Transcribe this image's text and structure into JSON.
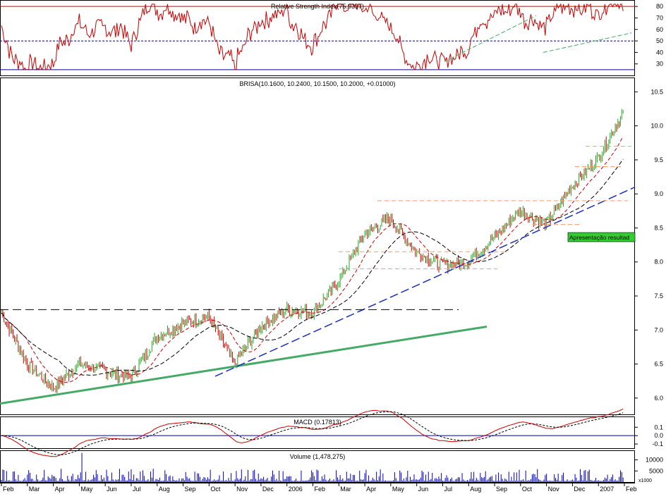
{
  "colors": {
    "price_up": "#22aa22",
    "price_down": "#cc0000",
    "rsi": "#cc0000",
    "rsi_ref": "#000099",
    "ma_short": "#cc0000",
    "ma_long": "#000000",
    "trend_green": "#44aa66",
    "trend_blue": "#1a2fbf",
    "resistance": "#ff9966",
    "macd": "#cc0000",
    "macd_signal": "#000000",
    "volume": "#0000cc",
    "annotation_bg": "#33cc33"
  },
  "chart_data": [
    {
      "type": "line",
      "panel": "rsi",
      "title": "Relative Strength Index(75.9337)",
      "yticks": [
        "80",
        "70",
        "60",
        "50",
        "40",
        "30"
      ],
      "ylim": [
        20,
        85
      ],
      "reference_lines": [
        80,
        50,
        25
      ],
      "last_value": 75.9337
    },
    {
      "type": "candlestick",
      "panel": "price",
      "title": "BRISA(10.1600, 10.2400, 10.1500, 10.2000, +0.01000)",
      "quote": {
        "open": 10.16,
        "high": 10.24,
        "low": 10.15,
        "close": 10.2,
        "change": 0.01
      },
      "yticks": [
        "10.5",
        "10.0",
        "9.5",
        "9.0",
        "8.5",
        "8.0",
        "7.5",
        "7.0",
        "6.5",
        "6.0"
      ],
      "ylim": [
        5.75,
        10.7
      ],
      "x_start": "2005-02",
      "x_end": "2007-02",
      "key_points": [
        {
          "date": "2005-02",
          "value": 7.25
        },
        {
          "date": "2005-03",
          "value": 6.5
        },
        {
          "date": "2005-04",
          "value": 6.15
        },
        {
          "date": "2005-05",
          "value": 6.5
        },
        {
          "date": "2005-06",
          "value": 6.4
        },
        {
          "date": "2005-07",
          "value": 6.3
        },
        {
          "date": "2005-08",
          "value": 6.9
        },
        {
          "date": "2005-09",
          "value": 7.1
        },
        {
          "date": "2005-10",
          "value": 7.2
        },
        {
          "date": "2005-11",
          "value": 6.5
        },
        {
          "date": "2005-12",
          "value": 7.05
        },
        {
          "date": "2006-01",
          "value": 7.3
        },
        {
          "date": "2006-02",
          "value": 7.25
        },
        {
          "date": "2006-03",
          "value": 7.7
        },
        {
          "date": "2006-04",
          "value": 8.4
        },
        {
          "date": "2006-05",
          "value": 8.65
        },
        {
          "date": "2006-06",
          "value": 8.15
        },
        {
          "date": "2006-07",
          "value": 7.95
        },
        {
          "date": "2006-08",
          "value": 8.0
        },
        {
          "date": "2006-09",
          "value": 8.35
        },
        {
          "date": "2006-10",
          "value": 8.75
        },
        {
          "date": "2006-11",
          "value": 8.55
        },
        {
          "date": "2006-12",
          "value": 9.1
        },
        {
          "date": "2007-01",
          "value": 9.5
        },
        {
          "date": "2007-02",
          "value": 10.2
        }
      ],
      "horizontal_levels": [
        7.3,
        8.9,
        8.15,
        7.9,
        9.7,
        9.4,
        8.55
      ],
      "annotation": "Apresentação resultad"
    },
    {
      "type": "line",
      "panel": "macd",
      "title": "MACD (0.17813)",
      "yticks": [
        "0.1",
        "0.0",
        "-0.1"
      ],
      "ylim": [
        -0.15,
        0.22
      ],
      "last_value": 0.17813
    },
    {
      "type": "bar",
      "panel": "volume",
      "title": "Volume (1,478,275)",
      "yticks": [
        "10000",
        "5000"
      ],
      "ylim": [
        0,
        14000
      ],
      "unit_label": "x1000",
      "last_value": 1478275
    }
  ],
  "x_axis": {
    "labels": [
      "Feb",
      "Mar",
      "Apr",
      "May",
      "Jun",
      "Jul",
      "Aug",
      "Sep",
      "Oct",
      "Nov",
      "Dec",
      "2006",
      "Feb",
      "Mar",
      "Apr",
      "May",
      "Jun",
      "Jul",
      "Aug",
      "Sep",
      "Oct",
      "Nov",
      "Dec",
      "2007",
      "Feb"
    ]
  }
}
